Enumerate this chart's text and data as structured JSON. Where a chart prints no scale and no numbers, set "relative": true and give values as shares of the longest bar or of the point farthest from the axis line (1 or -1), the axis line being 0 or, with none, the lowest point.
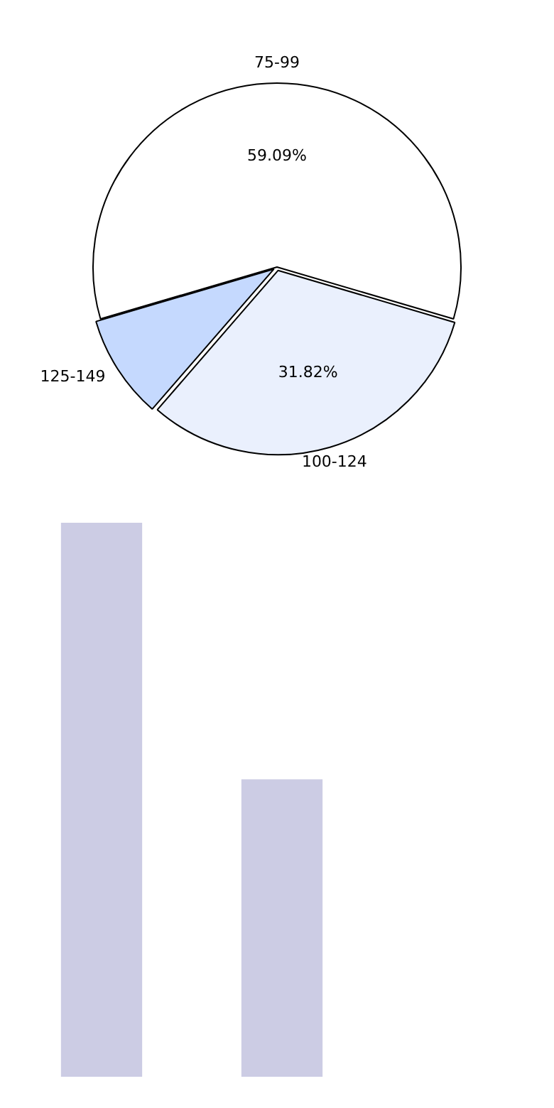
{
  "chart_data": [
    {
      "type": "pie",
      "categories": [
        "75-99",
        "100-124",
        "125-149"
      ],
      "values": [
        59.09,
        31.82,
        9.09
      ],
      "colors": [
        "#ffffff",
        "#eaf0fd",
        "#c5d9fe"
      ],
      "value_labels": [
        "59.09%",
        "31.82%",
        null
      ],
      "legend": false
    },
    {
      "type": "bar",
      "relative": true,
      "categories": [
        null,
        null
      ],
      "values": [
        1,
        0.537
      ],
      "color": "#cccce4",
      "legend": false
    }
  ]
}
